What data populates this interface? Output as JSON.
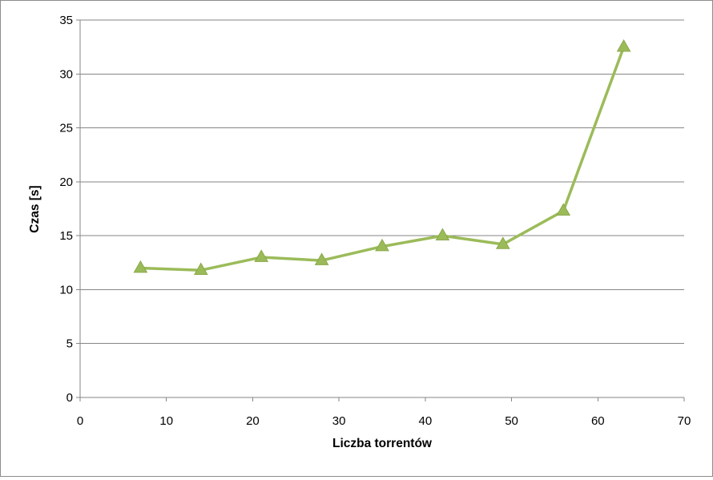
{
  "chart_data": {
    "type": "line",
    "title": "",
    "xlabel": "Liczba torrentów",
    "ylabel": "Czas [s]",
    "xlim": [
      0,
      70
    ],
    "ylim": [
      0,
      35
    ],
    "x_ticks": [
      0,
      10,
      20,
      30,
      40,
      50,
      60,
      70
    ],
    "y_ticks": [
      0,
      5,
      10,
      15,
      20,
      25,
      30,
      35
    ],
    "x_tick_labels": [
      "0",
      "10",
      "20",
      "30",
      "40",
      "50",
      "60",
      "70"
    ],
    "y_tick_labels": [
      "0",
      "5",
      "10",
      "15",
      "20",
      "25",
      "30",
      "35"
    ],
    "grid": "horizontal",
    "legend": "none",
    "series": [
      {
        "x": [
          7,
          14,
          21,
          28,
          35,
          42,
          49,
          56,
          63
        ],
        "values": [
          12.0,
          11.8,
          13.0,
          12.7,
          14.0,
          15.0,
          14.2,
          17.3,
          32.5
        ],
        "color": "#9bbb59",
        "marker": "triangle"
      }
    ]
  }
}
